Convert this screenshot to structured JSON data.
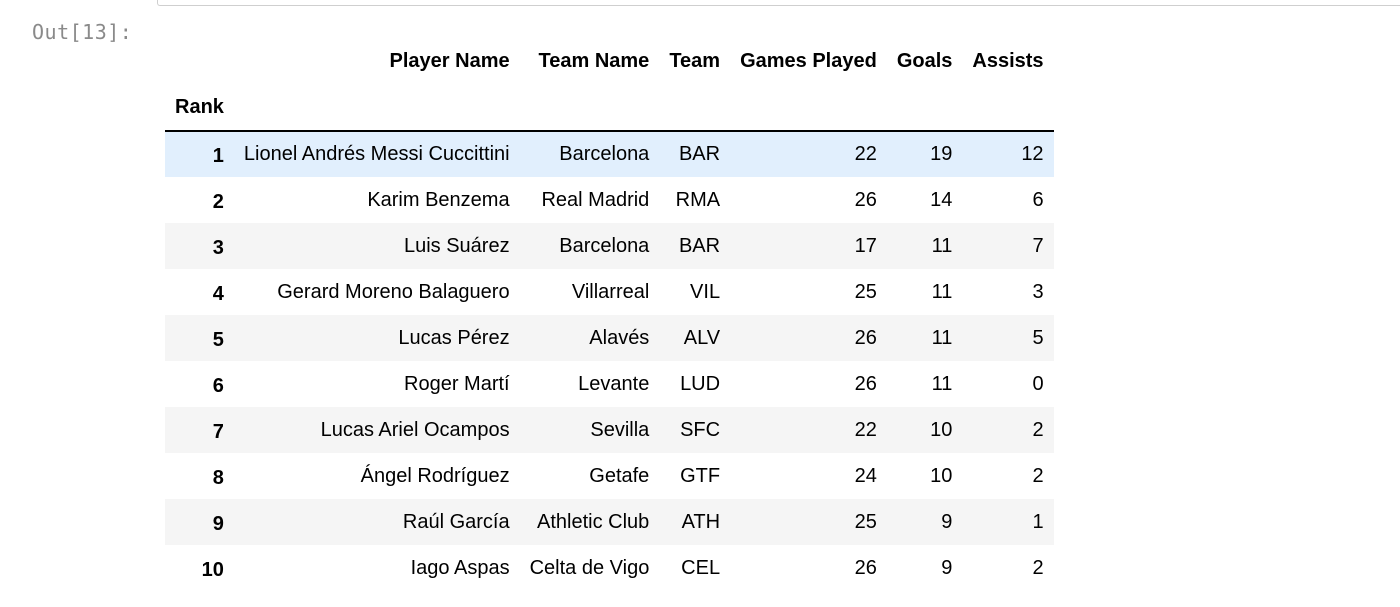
{
  "notebook": {
    "prompt": "Out[13]:"
  },
  "table": {
    "index_name": "Rank",
    "columns": [
      "Player Name",
      "Team Name",
      "Team",
      "Games Played",
      "Goals",
      "Assists"
    ],
    "rows": [
      {
        "rank": "1",
        "cells": [
          "Lionel Andrés Messi Cuccittini",
          "Barcelona",
          "BAR",
          "22",
          "19",
          "12"
        ]
      },
      {
        "rank": "2",
        "cells": [
          "Karim Benzema",
          "Real Madrid",
          "RMA",
          "26",
          "14",
          "6"
        ]
      },
      {
        "rank": "3",
        "cells": [
          "Luis Suárez",
          "Barcelona",
          "BAR",
          "17",
          "11",
          "7"
        ]
      },
      {
        "rank": "4",
        "cells": [
          "Gerard Moreno Balaguero",
          "Villarreal",
          "VIL",
          "25",
          "11",
          "3"
        ]
      },
      {
        "rank": "5",
        "cells": [
          "Lucas Pérez",
          "Alavés",
          "ALV",
          "26",
          "11",
          "5"
        ]
      },
      {
        "rank": "6",
        "cells": [
          "Roger Martí",
          "Levante",
          "LUD",
          "26",
          "11",
          "0"
        ]
      },
      {
        "rank": "7",
        "cells": [
          "Lucas Ariel Ocampos",
          "Sevilla",
          "SFC",
          "22",
          "10",
          "2"
        ]
      },
      {
        "rank": "8",
        "cells": [
          "Ángel Rodríguez",
          "Getafe",
          "GTF",
          "24",
          "10",
          "2"
        ]
      },
      {
        "rank": "9",
        "cells": [
          "Raúl García",
          "Athletic Club",
          "ATH",
          "25",
          "9",
          "1"
        ]
      },
      {
        "rank": "10",
        "cells": [
          "Iago Aspas",
          "Celta de Vigo",
          "CEL",
          "26",
          "9",
          "2"
        ]
      }
    ],
    "hovered_row": 0,
    "colors": {
      "hover_row": "#e1effd",
      "striped_row": "#f5f5f5",
      "prompt_text": "#8a8a8a"
    }
  }
}
